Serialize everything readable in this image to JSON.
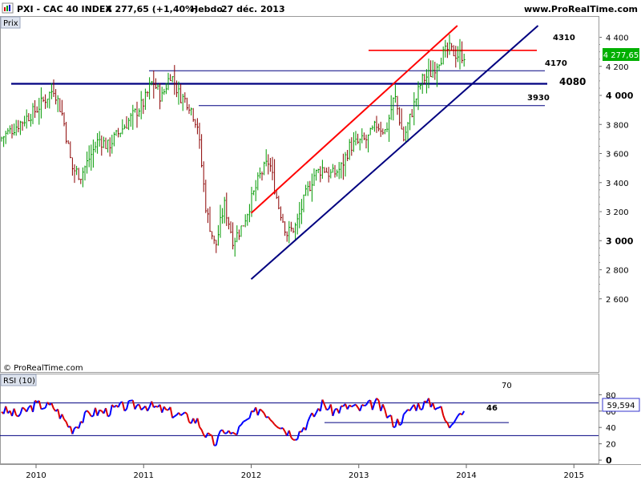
{
  "header": {
    "instrument": "PXI - CAC 40 INDEX",
    "price_change": "4 277,65 (+1,40%)",
    "period": "Hebdo",
    "date": "27 déc. 2013",
    "site": "www.ProRealTime.com"
  },
  "panel_labels": {
    "price": "Prix",
    "rsi": "RSI (10)",
    "copyright": "© ProRealTime.com"
  },
  "price_badge": {
    "text": "4 277,65",
    "color": "#00b000"
  },
  "rsi_badge": {
    "text": "59,594"
  },
  "annotations": {
    "r4310": "4310",
    "r4170": "4170",
    "r4080": "4080",
    "r3930": "3930",
    "rsi46": "46"
  },
  "colors": {
    "up": "#009900",
    "down": "#8b0000",
    "resistance": "#ff0000",
    "support": "#000080",
    "rsi_up": "#0000ff",
    "rsi_down": "#dd0000"
  },
  "chart_data": [
    {
      "type": "line",
      "panel": "price",
      "style": "ohlc-bars",
      "scale": "linear",
      "y_ticks": [
        "4 400",
        "4 200",
        "4 000",
        "3 800",
        "3 600",
        "3 400",
        "3 200",
        "3 000",
        "2 800",
        "2 600"
      ],
      "x_ticks": [
        "2010",
        "2011",
        "2012",
        "2013",
        "2014",
        "2015"
      ],
      "ylim": [
        2600,
        4480
      ],
      "grid": false,
      "series": [
        {
          "x": [
            "2009-09",
            "2009-11",
            "2010-01",
            "2010-03",
            "2010-04",
            "2010-05",
            "2010-06",
            "2010-08",
            "2010-09",
            "2010-11",
            "2011-01",
            "2011-02",
            "2011-03",
            "2011-04",
            "2011-05",
            "2011-06",
            "2011-07",
            "2011-08",
            "2011-09",
            "2011-10",
            "2011-11",
            "2011-12",
            "2012-02",
            "2012-03",
            "2012-04",
            "2012-05",
            "2012-06",
            "2012-07",
            "2012-08",
            "2012-09",
            "2012-10",
            "2012-11",
            "2012-12",
            "2013-02",
            "2013-03",
            "2013-04",
            "2013-05",
            "2013-06",
            "2013-07",
            "2013-08",
            "2013-09",
            "2013-10",
            "2013-11",
            "2013-12"
          ],
          "values": [
            3700,
            3800,
            3900,
            4050,
            3850,
            3500,
            3450,
            3700,
            3650,
            3800,
            3950,
            4100,
            3980,
            4150,
            4000,
            3950,
            3800,
            3200,
            2950,
            3250,
            3000,
            3100,
            3450,
            3550,
            3250,
            3050,
            3100,
            3300,
            3450,
            3500,
            3450,
            3500,
            3650,
            3700,
            3800,
            3750,
            4000,
            3700,
            3900,
            4100,
            4150,
            4250,
            4320,
            4277.65
          ]
        }
      ],
      "horizontal_lines": [
        {
          "value": 4310,
          "label": "4310",
          "color": "#ff0000"
        },
        {
          "value": 4170,
          "label": "4170",
          "color": "#000080"
        },
        {
          "value": 4080,
          "label": "4080",
          "color": "#000080"
        },
        {
          "value": 3930,
          "label": "3930",
          "color": "#000080"
        }
      ],
      "trendlines": [
        {
          "color": "#ff0000",
          "from": [
            "2012-01",
            3190
          ],
          "to": [
            "2013-12",
            4480
          ]
        },
        {
          "color": "#000080",
          "from": [
            "2012-01",
            2735
          ],
          "to": [
            "2014-09",
            4480
          ]
        }
      ]
    },
    {
      "type": "line",
      "panel": "rsi",
      "y_ticks": [
        "80",
        "60",
        "40",
        "20",
        "0"
      ],
      "ylim": [
        0,
        85
      ],
      "reference_lines": [
        70,
        30
      ],
      "horizontal_lines": [
        {
          "value": 46,
          "label": "46"
        }
      ],
      "series": [
        {
          "name": "RSI (10)",
          "x": [
            "2009-09",
            "2009-11",
            "2010-01",
            "2010-03",
            "2010-05",
            "2010-07",
            "2010-09",
            "2010-11",
            "2011-01",
            "2011-03",
            "2011-05",
            "2011-07",
            "2011-08",
            "2011-09",
            "2011-10",
            "2011-11",
            "2011-12",
            "2012-02",
            "2012-03",
            "2012-05",
            "2012-06",
            "2012-08",
            "2012-09",
            "2012-10",
            "2012-12",
            "2013-01",
            "2013-03",
            "2013-05",
            "2013-06",
            "2013-07",
            "2013-09",
            "2013-10",
            "2013-11",
            "2013-12"
          ],
          "values": [
            62,
            55,
            68,
            65,
            38,
            58,
            60,
            66,
            68,
            62,
            55,
            48,
            30,
            20,
            38,
            30,
            42,
            64,
            55,
            36,
            30,
            55,
            70,
            60,
            66,
            62,
            70,
            45,
            52,
            66,
            70,
            66,
            40,
            59.594
          ]
        }
      ]
    }
  ]
}
